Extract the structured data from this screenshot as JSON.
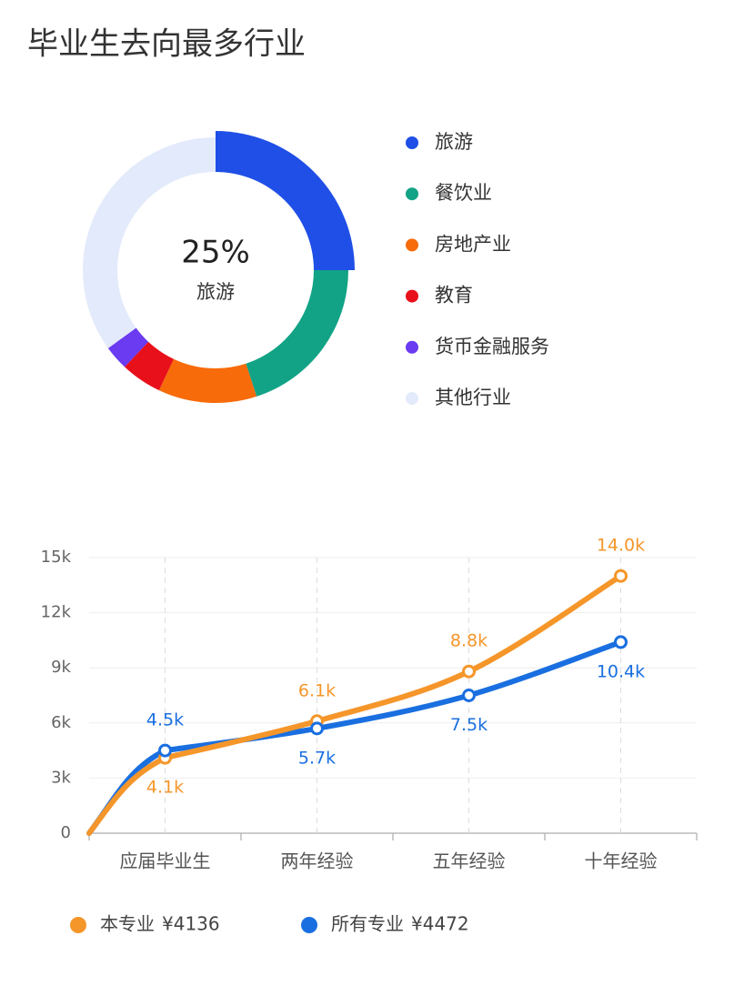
{
  "chart_data": [
    {
      "type": "donut",
      "title": "毕业生去向最多行业",
      "categories": [
        "旅游",
        "餐饮业",
        "房地产业",
        "教育",
        "货币金融服务",
        "其他行业"
      ],
      "values": [
        25,
        20,
        12,
        5,
        3,
        35
      ],
      "value_labels": [
        "25%",
        null,
        null,
        null,
        null,
        null
      ],
      "colors": [
        "#1f4fe6",
        "#12a386",
        "#f76b0a",
        "#e8101a",
        "#6a3bf0",
        "#e3eafb"
      ]
    },
    {
      "type": "line",
      "categories": [
        "应届毕业生",
        "两年经验",
        "五年经验",
        "十年经验"
      ],
      "series": [
        {
          "name": "本专业",
          "average": 4136,
          "average_label": "¥4136",
          "color": "#f5962a",
          "values": [
            4100,
            6100,
            8800,
            14000
          ],
          "value_labels": [
            "4.1k",
            "6.1k",
            "8.8k",
            "14.0k"
          ]
        },
        {
          "name": "所有专业",
          "average": 4472,
          "average_label": "¥4472",
          "color": "#1a6fe0",
          "values": [
            4500,
            5700,
            7500,
            10400
          ],
          "value_labels": [
            "4.5k",
            "5.7k",
            "7.5k",
            "10.4k"
          ]
        }
      ],
      "ylim": [
        0,
        15000
      ],
      "yticks": [
        0,
        {
          "value": 3000,
          "label": "3k"
        },
        {
          "value": 6000,
          "label": "6k"
        },
        {
          "value": 9000,
          "label": "9k"
        },
        {
          "value": 12000,
          "label": "12k"
        },
        {
          "value": 15000,
          "label": "15k"
        }
      ],
      "grid": true
    }
  ]
}
